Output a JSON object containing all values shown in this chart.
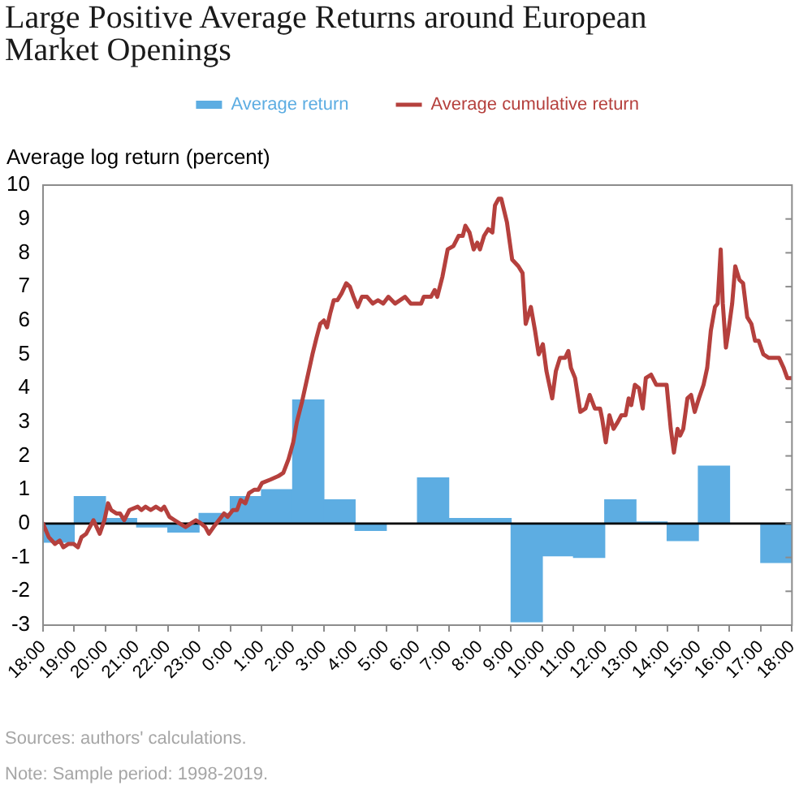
{
  "chart_data": {
    "type": "bar",
    "title": "Large Positive Average Returns around European Market Openings",
    "ylabel": "Average log return (percent)",
    "legend": "top",
    "grid": false,
    "xlim": [
      "2000-01-01T18:00",
      "2000-01-02T18:00"
    ],
    "xticks": [
      {
        "value": "2000-01-01T18:00",
        "label": "18:00"
      },
      {
        "value": "2000-01-01T19:00",
        "label": "19:00"
      },
      {
        "value": "2000-01-01T20:00",
        "label": "20:00"
      },
      {
        "value": "2000-01-01T21:00",
        "label": "21:00"
      },
      {
        "value": "2000-01-01T22:00",
        "label": "22:00"
      },
      {
        "value": "2000-01-01T23:00",
        "label": "23:00"
      },
      {
        "value": "2000-01-02T00:00",
        "label": "0:00"
      },
      {
        "value": "2000-01-02T01:00",
        "label": "1:00"
      },
      {
        "value": "2000-01-02T02:00",
        "label": "2:00"
      },
      {
        "value": "2000-01-02T03:00",
        "label": "3:00"
      },
      {
        "value": "2000-01-02T04:00",
        "label": "4:00"
      },
      {
        "value": "2000-01-02T05:00",
        "label": "5:00"
      },
      {
        "value": "2000-01-02T06:00",
        "label": "6:00"
      },
      {
        "value": "2000-01-02T07:00",
        "label": "7:00"
      },
      {
        "value": "2000-01-02T08:00",
        "label": "8:00"
      },
      {
        "value": "2000-01-02T09:00",
        "label": "9:00"
      },
      {
        "value": "2000-01-02T10:00",
        "label": "10:00"
      },
      {
        "value": "2000-01-02T11:00",
        "label": "11:00"
      },
      {
        "value": "2000-01-02T12:00",
        "label": "12:00"
      },
      {
        "value": "2000-01-02T13:00",
        "label": "13:00"
      },
      {
        "value": "2000-01-02T14:00",
        "label": "14:00"
      },
      {
        "value": "2000-01-02T15:00",
        "label": "15:00"
      },
      {
        "value": "2000-01-02T16:00",
        "label": "16:00"
      },
      {
        "value": "2000-01-02T17:00",
        "label": "17:00"
      },
      {
        "value": "2000-01-02T18:00",
        "label": "18:00"
      }
    ],
    "ylim": [
      -3,
      10
    ],
    "yticks": [
      -3,
      -2,
      -1,
      0,
      1,
      2,
      3,
      4,
      5,
      6,
      7,
      8,
      9,
      10
    ],
    "ref_lines": [
      {
        "axis": "y",
        "value": 0,
        "color": "#000000"
      }
    ],
    "annotations": [
      "Sources: authors' calculations.",
      "Note: Sample period: 1998-2019."
    ],
    "series": [
      {
        "name": "Average return",
        "color": "#5dade2",
        "x": [
          "2000-01-01T18:30",
          "2000-01-01T19:30",
          "2000-01-01T20:30",
          "2000-01-01T21:30",
          "2000-01-01T22:30",
          "2000-01-01T23:30",
          "2000-01-02T00:30",
          "2000-01-02T01:30",
          "2000-01-02T02:30",
          "2000-01-02T03:30",
          "2000-01-02T04:30",
          "2000-01-02T05:30",
          "2000-01-02T06:30",
          "2000-01-02T07:30",
          "2000-01-02T08:30",
          "2000-01-02T09:30",
          "2000-01-02T10:30",
          "2000-01-02T11:30",
          "2000-01-02T12:30",
          "2000-01-02T13:30",
          "2000-01-02T14:30",
          "2000-01-02T15:30",
          "2000-01-02T16:30",
          "2000-01-02T17:30"
        ],
        "values": [
          -0.55,
          0.8,
          0.15,
          -0.1,
          -0.25,
          0.3,
          0.8,
          1.0,
          3.65,
          0.7,
          -0.2,
          0,
          1.35,
          0.15,
          0.15,
          -2.9,
          -0.95,
          -1.0,
          0.7,
          0.05,
          -0.5,
          1.7,
          0,
          -1.15
        ]
      },
      {
        "name": "Average cumulative return",
        "type": "line",
        "color": "#b5403d",
        "x": [
          "2000-01-01T18:00",
          "2000-01-01T18:11",
          "2000-01-01T18:23",
          "2000-01-01T18:32",
          "2000-01-01T18:39",
          "2000-01-01T18:49",
          "2000-01-01T18:59",
          "2000-01-01T19:07",
          "2000-01-01T19:14",
          "2000-01-01T19:23",
          "2000-01-01T19:30",
          "2000-01-01T19:37",
          "2000-01-01T19:43",
          "2000-01-01T19:49",
          "2000-01-01T19:58",
          "2000-01-01T20:05",
          "2000-01-01T20:11",
          "2000-01-01T20:21",
          "2000-01-01T20:28",
          "2000-01-01T20:36",
          "2000-01-01T20:46",
          "2000-01-01T21:02",
          "2000-01-01T21:09",
          "2000-01-01T21:17",
          "2000-01-01T21:27",
          "2000-01-01T21:37",
          "2000-01-01T21:47",
          "2000-01-01T21:53",
          "2000-01-01T22:03",
          "2000-01-01T22:13",
          "2000-01-01T22:23",
          "2000-01-01T22:34",
          "2000-01-01T22:44",
          "2000-01-01T22:54",
          "2000-01-01T23:04",
          "2000-01-01T23:12",
          "2000-01-01T23:19",
          "2000-01-01T23:28",
          "2000-01-01T23:38",
          "2000-01-01T23:48",
          "2000-01-01T23:55",
          "2000-01-02T00:05",
          "2000-01-02T00:13",
          "2000-01-02T00:20",
          "2000-01-02T00:29",
          "2000-01-02T00:36",
          "2000-01-02T00:46",
          "2000-01-02T00:54",
          "2000-01-02T01:01",
          "2000-01-02T01:17",
          "2000-01-02T01:32",
          "2000-01-02T01:42",
          "2000-01-02T01:52",
          "2000-01-02T02:01",
          "2000-01-02T02:08",
          "2000-01-02T02:18",
          "2000-01-02T02:28",
          "2000-01-02T02:38",
          "2000-01-02T02:46",
          "2000-01-02T02:53",
          "2000-01-02T03:00",
          "2000-01-02T03:06",
          "2000-01-02T03:12",
          "2000-01-02T03:19",
          "2000-01-02T03:26",
          "2000-01-02T03:34",
          "2000-01-02T03:43",
          "2000-01-02T03:50",
          "2000-01-02T03:57",
          "2000-01-02T04:05",
          "2000-01-02T04:13",
          "2000-01-02T04:23",
          "2000-01-02T04:34",
          "2000-01-02T04:44",
          "2000-01-02T04:54",
          "2000-01-02T05:04",
          "2000-01-02T05:17",
          "2000-01-02T05:36",
          "2000-01-02T05:47",
          "2000-01-02T05:57",
          "2000-01-02T06:07",
          "2000-01-02T06:12",
          "2000-01-02T06:26",
          "2000-01-02T06:33",
          "2000-01-02T06:38",
          "2000-01-02T06:48",
          "2000-01-02T06:58",
          "2000-01-02T07:09",
          "2000-01-02T07:19",
          "2000-01-02T07:27",
          "2000-01-02T07:32",
          "2000-01-02T07:40",
          "2000-01-02T07:48",
          "2000-01-02T07:55",
          "2000-01-02T08:00",
          "2000-01-02T08:08",
          "2000-01-02T08:16",
          "2000-01-02T08:24",
          "2000-01-02T08:29",
          "2000-01-02T08:36",
          "2000-01-02T08:41",
          "2000-01-02T08:52",
          "2000-01-02T09:02",
          "2000-01-02T09:14",
          "2000-01-02T09:22",
          "2000-01-02T09:28",
          "2000-01-02T09:38",
          "2000-01-02T09:46",
          "2000-01-02T09:53",
          "2000-01-02T10:01",
          "2000-01-02T10:08",
          "2000-01-02T10:19",
          "2000-01-02T10:26",
          "2000-01-02T10:34",
          "2000-01-02T10:44",
          "2000-01-02T10:50",
          "2000-01-02T10:55",
          "2000-01-02T11:03",
          "2000-01-02T11:13",
          "2000-01-02T11:23",
          "2000-01-02T11:31",
          "2000-01-02T11:41",
          "2000-01-02T11:51",
          "2000-01-02T11:55",
          "2000-01-02T12:02",
          "2000-01-02T12:09",
          "2000-01-02T12:17",
          "2000-01-02T12:25",
          "2000-01-02T12:32",
          "2000-01-02T12:40",
          "2000-01-02T12:46",
          "2000-01-02T12:51",
          "2000-01-02T12:58",
          "2000-01-02T13:06",
          "2000-01-02T13:13",
          "2000-01-02T13:19",
          "2000-01-02T13:29",
          "2000-01-02T13:39",
          "2000-01-02T13:49",
          "2000-01-02T13:59",
          "2000-01-02T14:07",
          "2000-01-02T14:13",
          "2000-01-02T14:20",
          "2000-01-02T14:25",
          "2000-01-02T14:31",
          "2000-01-02T14:39",
          "2000-01-02T14:46",
          "2000-01-02T14:53",
          "2000-01-02T15:01",
          "2000-01-02T15:10",
          "2000-01-02T15:17",
          "2000-01-02T15:24",
          "2000-01-02T15:32",
          "2000-01-02T15:37",
          "2000-01-02T15:43",
          "2000-01-02T15:47",
          "2000-01-02T15:53",
          "2000-01-02T15:58",
          "2000-01-02T16:05",
          "2000-01-02T16:11",
          "2000-01-02T16:19",
          "2000-01-02T16:26",
          "2000-01-02T16:34",
          "2000-01-02T16:42",
          "2000-01-02T16:49",
          "2000-01-02T16:56",
          "2000-01-02T17:05",
          "2000-01-02T17:15",
          "2000-01-02T17:25",
          "2000-01-02T17:35",
          "2000-01-02T17:44",
          "2000-01-02T17:51",
          "2000-01-02T18:00"
        ],
        "values": [
          0.0,
          -0.4,
          -0.6,
          -0.5,
          -0.7,
          -0.6,
          -0.6,
          -0.7,
          -0.4,
          -0.3,
          -0.1,
          0.1,
          -0.1,
          -0.3,
          0.1,
          0.6,
          0.4,
          0.3,
          0.3,
          0.1,
          0.4,
          0.5,
          0.4,
          0.5,
          0.4,
          0.5,
          0.4,
          0.5,
          0.2,
          0.1,
          0.0,
          -0.1,
          0.0,
          0.1,
          0.0,
          -0.1,
          -0.3,
          -0.1,
          0.1,
          0.3,
          0.2,
          0.4,
          0.4,
          0.7,
          0.6,
          0.9,
          1.0,
          1.0,
          1.2,
          1.3,
          1.4,
          1.5,
          1.9,
          2.4,
          3.0,
          3.6,
          4.3,
          5.0,
          5.5,
          5.9,
          6.0,
          5.8,
          6.2,
          6.6,
          6.6,
          6.8,
          7.1,
          7.0,
          6.7,
          6.4,
          6.7,
          6.7,
          6.5,
          6.6,
          6.5,
          6.7,
          6.5,
          6.7,
          6.5,
          6.5,
          6.5,
          6.7,
          6.7,
          6.9,
          6.7,
          7.3,
          8.1,
          8.2,
          8.5,
          8.5,
          8.8,
          8.6,
          8.1,
          8.3,
          8.1,
          8.5,
          8.7,
          8.6,
          9.4,
          9.6,
          9.6,
          8.9,
          7.8,
          7.6,
          7.4,
          5.9,
          6.4,
          5.7,
          5.0,
          5.3,
          4.5,
          3.7,
          4.5,
          4.9,
          4.9,
          5.1,
          4.6,
          4.3,
          3.3,
          3.4,
          3.8,
          3.4,
          3.4,
          3.1,
          2.4,
          3.2,
          2.8,
          3.0,
          3.2,
          3.2,
          3.7,
          3.5,
          4.1,
          4.0,
          3.4,
          4.3,
          4.4,
          4.1,
          4.1,
          4.1,
          2.8,
          2.1,
          2.8,
          2.6,
          2.8,
          3.7,
          3.8,
          3.3,
          3.7,
          4.1,
          4.6,
          5.7,
          6.4,
          6.5,
          8.1,
          6.5,
          5.2,
          5.7,
          6.5,
          7.6,
          7.2,
          7.1,
          6.1,
          5.9,
          5.4,
          5.4,
          5.0,
          4.9,
          4.9,
          4.9,
          4.6,
          4.3,
          4.3
        ]
      }
    ]
  }
}
